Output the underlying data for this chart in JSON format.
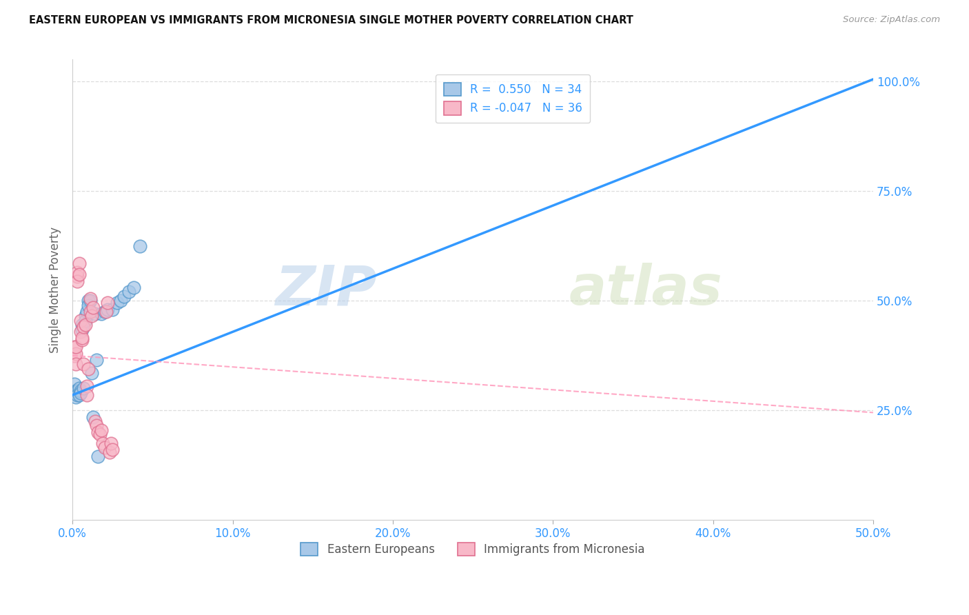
{
  "title": "EASTERN EUROPEAN VS IMMIGRANTS FROM MICRONESIA SINGLE MOTHER POVERTY CORRELATION CHART",
  "source": "Source: ZipAtlas.com",
  "ylabel": "Single Mother Poverty",
  "legend_label1": "Eastern Europeans",
  "legend_label2": "Immigrants from Micronesia",
  "r1": "0.550",
  "n1": "34",
  "r2": "-0.047",
  "n2": "36",
  "blue_fill": "#a8c8e8",
  "blue_edge": "#5599cc",
  "pink_fill": "#f8b8c8",
  "pink_edge": "#e07090",
  "blue_line_color": "#3399ff",
  "pink_line_color": "#ff99bb",
  "watermark_zip": "ZIP",
  "watermark_atlas": "atlas",
  "blue_scatter_x": [
    0.001,
    0.001,
    0.002,
    0.002,
    0.003,
    0.003,
    0.004,
    0.004,
    0.005,
    0.005,
    0.006,
    0.006,
    0.007,
    0.008,
    0.008,
    0.009,
    0.01,
    0.01,
    0.011,
    0.012,
    0.013,
    0.014,
    0.015,
    0.016,
    0.018,
    0.02,
    0.022,
    0.025,
    0.028,
    0.03,
    0.032,
    0.035,
    0.038,
    0.042
  ],
  "blue_scatter_y": [
    0.295,
    0.31,
    0.295,
    0.28,
    0.295,
    0.285,
    0.3,
    0.285,
    0.295,
    0.29,
    0.445,
    0.435,
    0.3,
    0.465,
    0.455,
    0.475,
    0.5,
    0.49,
    0.5,
    0.335,
    0.235,
    0.47,
    0.365,
    0.145,
    0.47,
    0.475,
    0.48,
    0.48,
    0.495,
    0.5,
    0.51,
    0.52,
    0.53,
    0.625
  ],
  "pink_scatter_x": [
    0.001,
    0.001,
    0.002,
    0.002,
    0.002,
    0.003,
    0.003,
    0.003,
    0.004,
    0.004,
    0.005,
    0.005,
    0.006,
    0.006,
    0.007,
    0.007,
    0.008,
    0.009,
    0.009,
    0.01,
    0.011,
    0.011,
    0.012,
    0.013,
    0.014,
    0.015,
    0.016,
    0.017,
    0.018,
    0.019,
    0.02,
    0.021,
    0.022,
    0.023,
    0.024,
    0.025
  ],
  "pink_scatter_y": [
    0.375,
    0.395,
    0.38,
    0.355,
    0.395,
    0.555,
    0.565,
    0.545,
    0.585,
    0.56,
    0.43,
    0.455,
    0.41,
    0.415,
    0.44,
    0.355,
    0.445,
    0.305,
    0.285,
    0.345,
    0.475,
    0.505,
    0.465,
    0.485,
    0.225,
    0.215,
    0.2,
    0.195,
    0.205,
    0.175,
    0.165,
    0.475,
    0.495,
    0.155,
    0.175,
    0.16
  ],
  "xlim": [
    0.0,
    0.5
  ],
  "ylim": [
    0.0,
    1.05
  ],
  "ytick_positions": [
    0.25,
    0.5,
    0.75,
    1.0
  ],
  "ytick_labels": [
    "25.0%",
    "50.0%",
    "75.0%",
    "100.0%"
  ],
  "xtick_positions": [
    0.0,
    0.1,
    0.2,
    0.3,
    0.4,
    0.5
  ],
  "xtick_labels": [
    "0.0%",
    "10.0%",
    "20.0%",
    "30.0%",
    "40.0%",
    "50.0%"
  ],
  "blue_line_x": [
    0.0,
    0.5
  ],
  "blue_line_y": [
    0.285,
    1.005
  ],
  "pink_line_x": [
    0.0,
    0.5
  ],
  "pink_line_y": [
    0.375,
    0.245
  ]
}
